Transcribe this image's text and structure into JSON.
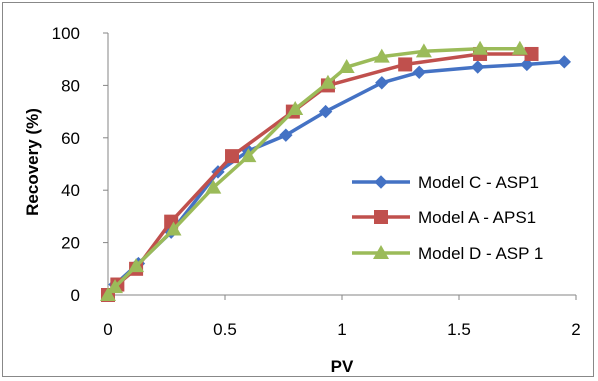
{
  "chart_data": {
    "type": "line",
    "title": "",
    "xlabel": "PV",
    "ylabel": "Recovery (%)",
    "xlim": [
      0,
      2
    ],
    "ylim": [
      0,
      100
    ],
    "x_ticks": [
      "0",
      "0.5",
      "1",
      "1.5",
      "2"
    ],
    "y_ticks": [
      "0",
      "20",
      "40",
      "60",
      "80",
      "100"
    ],
    "grid": false,
    "legend_position": "right",
    "series": [
      {
        "name": "Model C - ASP1",
        "color": "#4472C4",
        "marker": "diamond",
        "points": [
          {
            "x": 0.0,
            "y": 0
          },
          {
            "x": 0.03,
            "y": 4
          },
          {
            "x": 0.13,
            "y": 12
          },
          {
            "x": 0.27,
            "y": 24
          },
          {
            "x": 0.47,
            "y": 47
          },
          {
            "x": 0.6,
            "y": 55
          },
          {
            "x": 0.76,
            "y": 61
          },
          {
            "x": 0.93,
            "y": 70
          },
          {
            "x": 1.17,
            "y": 81
          },
          {
            "x": 1.33,
            "y": 85
          },
          {
            "x": 1.58,
            "y": 87
          },
          {
            "x": 1.79,
            "y": 88
          },
          {
            "x": 1.95,
            "y": 89
          }
        ]
      },
      {
        "name": "Model A - APS1",
        "color": "#C0504D",
        "marker": "square",
        "points": [
          {
            "x": 0.0,
            "y": 0
          },
          {
            "x": 0.04,
            "y": 4
          },
          {
            "x": 0.12,
            "y": 10
          },
          {
            "x": 0.27,
            "y": 28
          },
          {
            "x": 0.53,
            "y": 53
          },
          {
            "x": 0.79,
            "y": 70
          },
          {
            "x": 0.94,
            "y": 80
          },
          {
            "x": 1.27,
            "y": 88
          },
          {
            "x": 1.59,
            "y": 92
          },
          {
            "x": 1.81,
            "y": 92
          }
        ]
      },
      {
        "name": "Model D - ASP 1",
        "color": "#9BBB59",
        "marker": "triangle",
        "points": [
          {
            "x": 0.0,
            "y": 0
          },
          {
            "x": 0.03,
            "y": 3
          },
          {
            "x": 0.12,
            "y": 11
          },
          {
            "x": 0.28,
            "y": 25
          },
          {
            "x": 0.45,
            "y": 41
          },
          {
            "x": 0.6,
            "y": 53
          },
          {
            "x": 0.8,
            "y": 71
          },
          {
            "x": 0.94,
            "y": 81
          },
          {
            "x": 1.02,
            "y": 87
          },
          {
            "x": 1.17,
            "y": 91
          },
          {
            "x": 1.35,
            "y": 93
          },
          {
            "x": 1.59,
            "y": 94
          },
          {
            "x": 1.76,
            "y": 94
          }
        ]
      }
    ]
  }
}
